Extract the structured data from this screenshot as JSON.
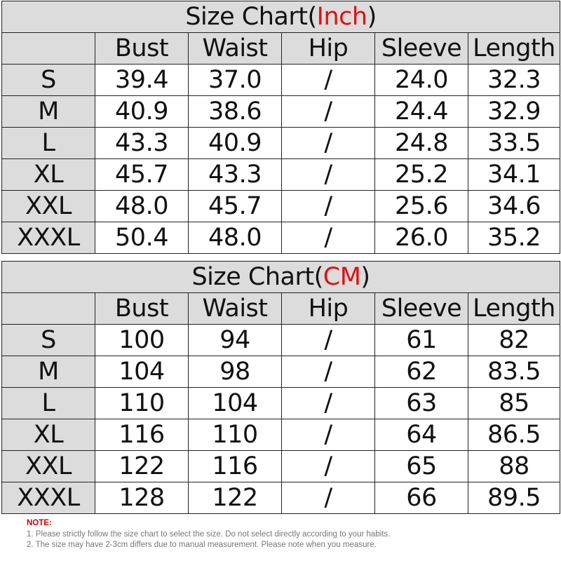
{
  "inch_table": {
    "title": "Size Chart(",
    "unit": "Inch",
    "title_close": ")",
    "headers": [
      "",
      "Bust",
      "Waist",
      "Hip",
      "Sleeve",
      "Length"
    ],
    "rows": [
      [
        "S",
        "39.4",
        "37.0",
        "/",
        "24.0",
        "32.3"
      ],
      [
        "M",
        "40.9",
        "38.6",
        "/",
        "24.4",
        "32.9"
      ],
      [
        "L",
        "43.3",
        "40.9",
        "/",
        "24.8",
        "33.5"
      ],
      [
        "XL",
        "45.7",
        "43.3",
        "/",
        "25.2",
        "34.1"
      ],
      [
        "XXL",
        "48.0",
        "45.7",
        "/",
        "25.6",
        "34.6"
      ],
      [
        "XXXL",
        "50.4",
        "48.0",
        "/",
        "26.0",
        "35.2"
      ]
    ]
  },
  "cm_table": {
    "title": "Size Chart(",
    "unit": "CM",
    "title_close": ")",
    "headers": [
      "",
      "Bust",
      "Waist",
      "Hip",
      "Sleeve",
      "Length"
    ],
    "rows": [
      [
        "S",
        "100",
        "94",
        "/",
        "61",
        "82"
      ],
      [
        "M",
        "104",
        "98",
        "/",
        "62",
        "83.5"
      ],
      [
        "L",
        "110",
        "104",
        "/",
        "63",
        "85"
      ],
      [
        "XL",
        "116",
        "110",
        "/",
        "64",
        "86.5"
      ],
      [
        "XXL",
        "122",
        "116",
        "/",
        "65",
        "88"
      ],
      [
        "XXXL",
        "128",
        "122",
        "/",
        "66",
        "89.5"
      ]
    ]
  },
  "notes": {
    "label": "NOTE:",
    "items": [
      "1. Please strictly follow the size chart  to select the size. Do not select directly according to your habits.",
      "2. The size may have 2-3cm differs due to manual measurement. Please note when you measure."
    ]
  },
  "colors": {
    "header_bg": "#dcdcdc",
    "unit_accent": "#e01010",
    "note_label": "#cc0000"
  }
}
